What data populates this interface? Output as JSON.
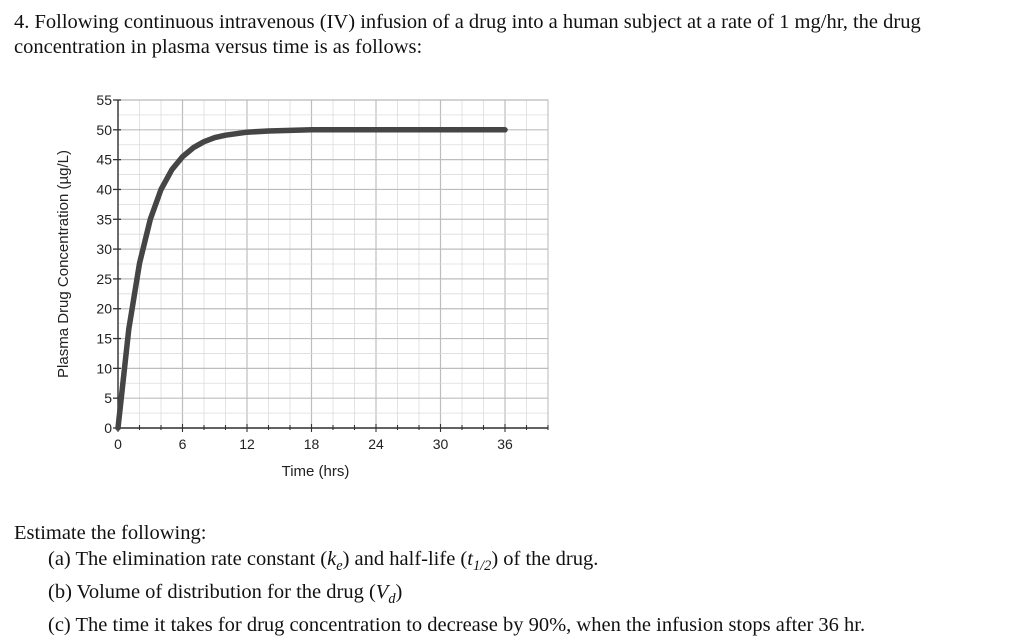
{
  "question": {
    "text": "4. Following continuous intravenous (IV) infusion of a drug into a human subject at a rate of 1 mg/hr, the drug concentration in plasma versus time is as follows:"
  },
  "chart_data": {
    "type": "line",
    "xlabel": "Time (hrs)",
    "ylabel": "Plasma Drug Concentration (µg/L)",
    "xlim": [
      0,
      36
    ],
    "ylim": [
      0,
      55
    ],
    "x_ticks": [
      0,
      6,
      12,
      18,
      24,
      30,
      36
    ],
    "y_ticks": [
      0,
      5,
      10,
      15,
      20,
      25,
      30,
      35,
      40,
      45,
      50,
      55
    ],
    "grid": true,
    "series": [
      {
        "x": [
          0,
          1,
          2,
          3,
          4,
          5,
          6,
          7,
          8,
          9,
          10,
          12,
          14,
          16,
          18,
          20,
          24,
          30,
          36
        ],
        "y": [
          0,
          16.6,
          27.6,
          35.0,
          40.0,
          43.3,
          45.5,
          47.0,
          48.0,
          48.7,
          49.1,
          49.6,
          49.8,
          49.9,
          50.0,
          50.0,
          50.0,
          50.0,
          50.0
        ]
      }
    ]
  },
  "tasks": {
    "intro": "Estimate the following:",
    "a_prefix": "(a) The elimination rate constant (",
    "a_k": "k",
    "a_k_sub": "e",
    "a_mid": ") and half-life (",
    "a_t": "t",
    "a_t_sub": "1/2",
    "a_suffix": ") of the drug.",
    "b_prefix": "(b) Volume of distribution for the drug (",
    "b_v": "V",
    "b_v_sub": "d",
    "b_suffix": ")",
    "c_text": "(c) The time it takes for drug concentration to decrease by 90%, when the infusion stops after 36 hr."
  }
}
